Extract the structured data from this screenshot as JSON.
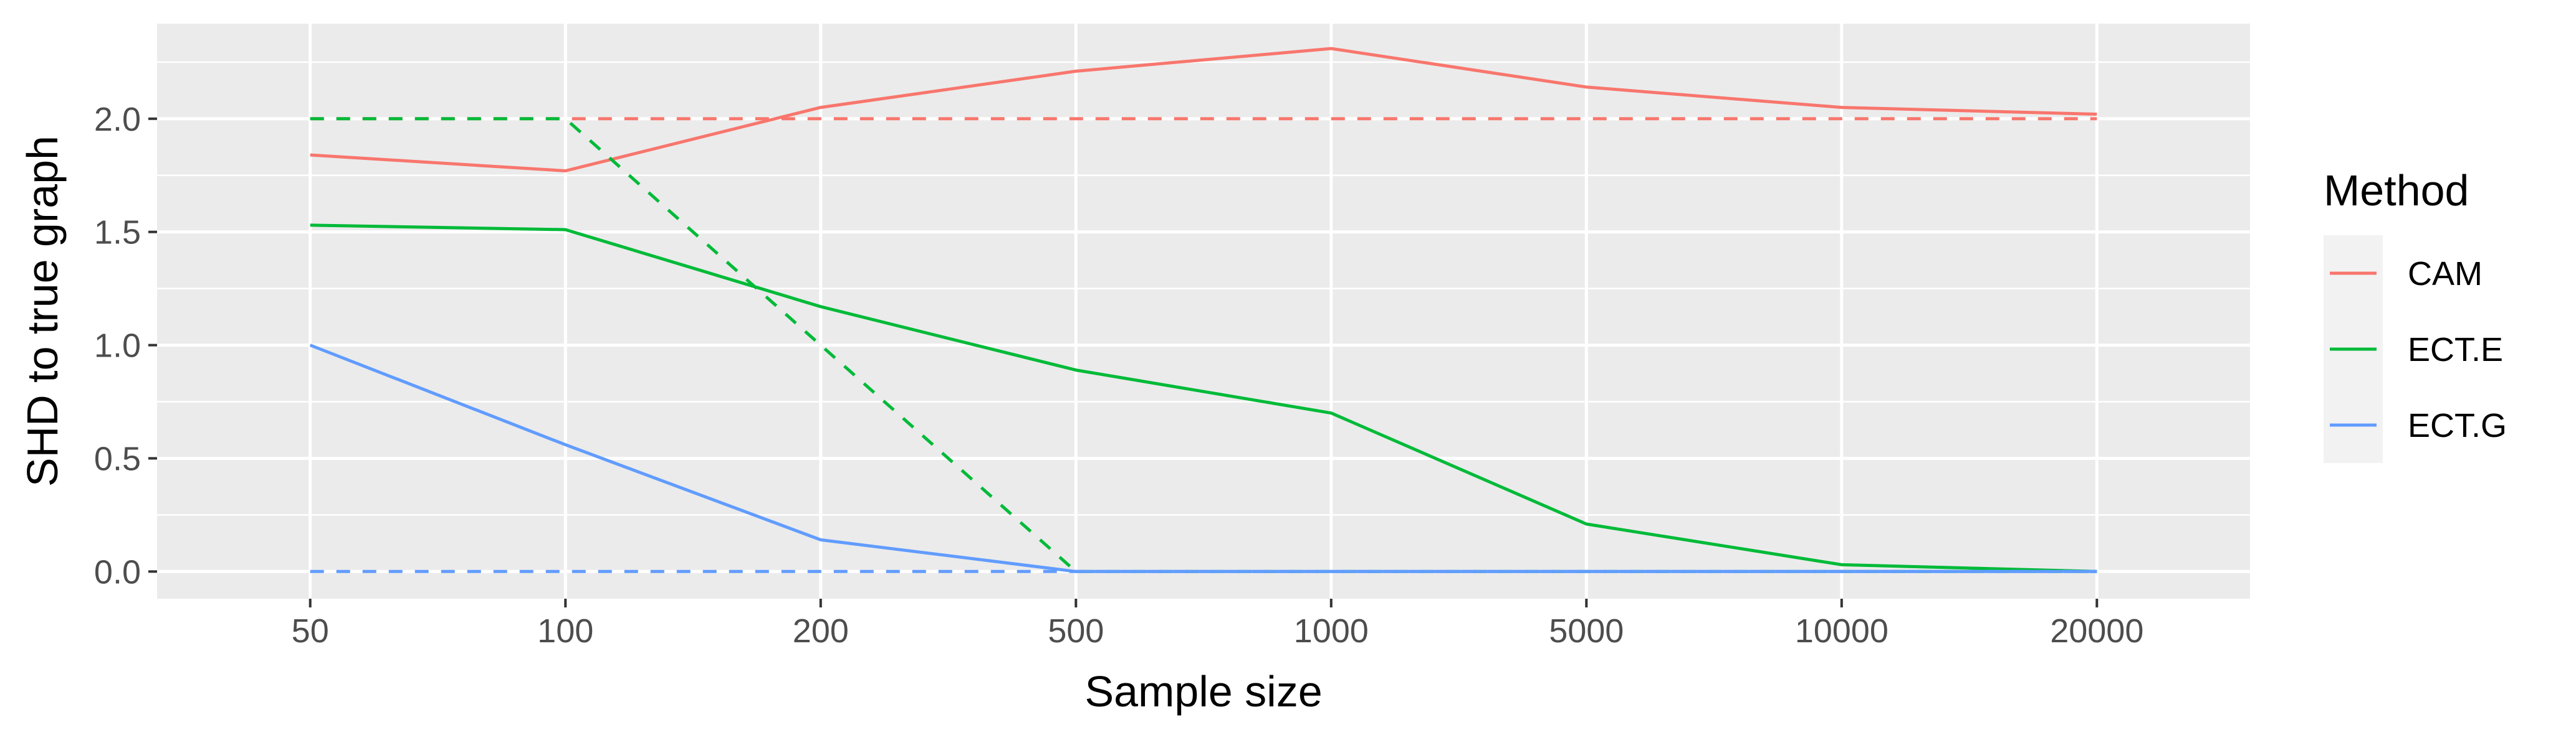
{
  "chart_data": {
    "type": "line",
    "title": "",
    "xlabel": "Sample size",
    "ylabel": "SHD to true graph",
    "categories": [
      "50",
      "100",
      "200",
      "500",
      "1000",
      "5000",
      "10000",
      "20000"
    ],
    "yticks": [
      "0.0",
      "0.5",
      "1.0",
      "1.5",
      "2.0"
    ],
    "ylim": [
      -0.12,
      2.42
    ],
    "grid": true,
    "legend": {
      "title": "Method",
      "placement": "right",
      "entries": [
        {
          "name": "CAM",
          "color": "#F8766D"
        },
        {
          "name": "ECT.E",
          "color": "#00BA38"
        },
        {
          "name": "ECT.G",
          "color": "#619CFF"
        }
      ]
    },
    "series": [
      {
        "name": "CAM",
        "style": "solid",
        "color": "#F8766D",
        "values": [
          1.84,
          1.77,
          2.05,
          2.21,
          2.31,
          2.14,
          2.05,
          2.02
        ]
      },
      {
        "name": "CAM",
        "style": "dashed",
        "color": "#F8766D",
        "values": [
          2.0,
          2.0,
          2.0,
          2.0,
          2.0,
          2.0,
          2.0,
          2.0
        ]
      },
      {
        "name": "ECT.E",
        "style": "solid",
        "color": "#00BA38",
        "values": [
          1.53,
          1.51,
          1.17,
          0.89,
          0.7,
          0.21,
          0.03,
          0.0
        ]
      },
      {
        "name": "ECT.E",
        "style": "dashed",
        "color": "#00BA38",
        "values": [
          2.0,
          2.0,
          1.0,
          0.0,
          0.0,
          0.0,
          0.0,
          0.0
        ]
      },
      {
        "name": "ECT.G",
        "style": "solid",
        "color": "#619CFF",
        "values": [
          1.0,
          0.56,
          0.14,
          0.0,
          0.0,
          0.0,
          0.0,
          0.0
        ]
      },
      {
        "name": "ECT.G",
        "style": "dashed",
        "color": "#619CFF",
        "values": [
          0.0,
          0.0,
          0.0,
          0.0,
          0.0,
          0.0,
          0.0,
          0.0
        ]
      }
    ]
  }
}
